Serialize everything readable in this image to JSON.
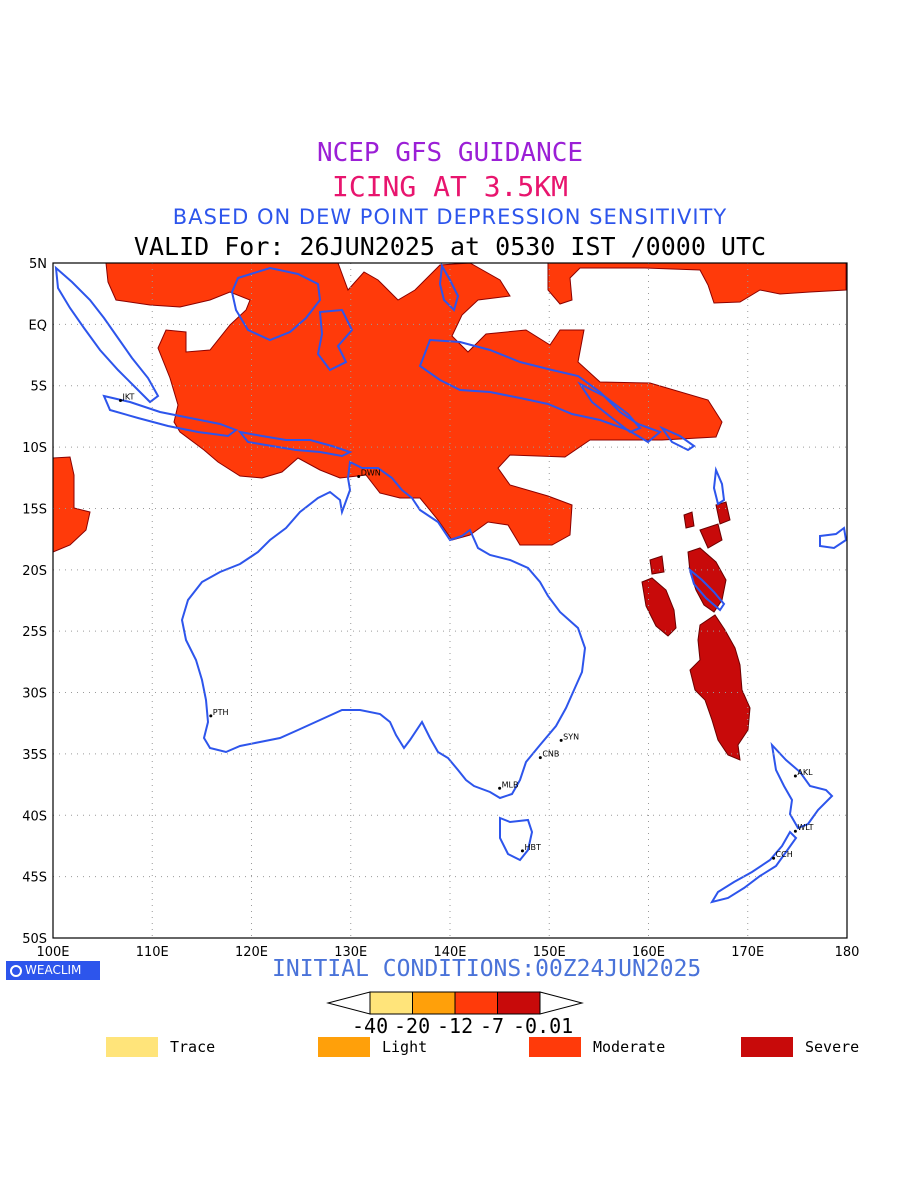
{
  "titles": {
    "line1": "NCEP GFS GUIDANCE",
    "line2": "ICING AT 3.5KM",
    "line3": "BASED ON DEW POINT DEPRESSION SENSITIVITY",
    "line4": "VALID For: 26JUN2025 at 0530 IST /0000 UTC"
  },
  "map": {
    "lon_range": [
      100,
      180
    ],
    "lat_range": [
      -50,
      5
    ],
    "lon_ticks": [
      "100E",
      "110E",
      "120E",
      "130E",
      "140E",
      "150E",
      "160E",
      "170E",
      "180"
    ],
    "lat_ticks": [
      "5N",
      "EQ",
      "5S",
      "10S",
      "15S",
      "20S",
      "25S",
      "30S",
      "35S",
      "40S",
      "45S",
      "50S"
    ],
    "grid": true,
    "colors": {
      "coast": "#2d55ec",
      "moderate": "#ff3a0a",
      "severe": "#c80a0a",
      "grid": "#9a9a9a"
    },
    "cities": [
      {
        "label": "JKT",
        "lon": 106.8,
        "lat": -6.2
      },
      {
        "label": "DWN",
        "lon": 130.8,
        "lat": -12.4
      },
      {
        "label": "PTH",
        "lon": 115.9,
        "lat": -31.9
      },
      {
        "label": "SYN",
        "lon": 151.2,
        "lat": -33.9
      },
      {
        "label": "CNB",
        "lon": 149.1,
        "lat": -35.3
      },
      {
        "label": "MLB",
        "lon": 145.0,
        "lat": -37.8
      },
      {
        "label": "HBT",
        "lon": 147.3,
        "lat": -42.9
      },
      {
        "label": "AKL",
        "lon": 174.8,
        "lat": -36.8
      },
      {
        "label": "WLT",
        "lon": 174.8,
        "lat": -41.3
      },
      {
        "label": "CCH",
        "lon": 172.6,
        "lat": -43.5
      }
    ]
  },
  "footer": {
    "brand": "WEACLIM",
    "initial": "INITIAL CONDITIONS:00Z24JUN2025"
  },
  "colorbar": {
    "bins": [
      "#ffe47a",
      "#ffa00a",
      "#ff3a0a",
      "#c80a0a"
    ],
    "labels": [
      "-40",
      "-20",
      "-12",
      "-7",
      "-0.01"
    ]
  },
  "legend": [
    {
      "label": "Trace",
      "color": "#ffe47a"
    },
    {
      "label": "Light",
      "color": "#ffa00a"
    },
    {
      "label": "Moderate",
      "color": "#ff3a0a"
    },
    {
      "label": "Severe",
      "color": "#c80a0a"
    }
  ]
}
